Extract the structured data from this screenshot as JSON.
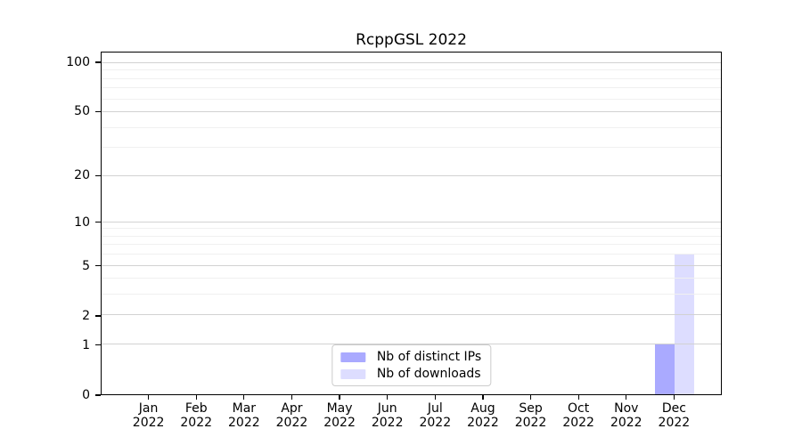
{
  "chart_data": {
    "type": "bar",
    "title": "RcppGSL 2022",
    "categories": [
      {
        "month": "Jan",
        "year": "2022"
      },
      {
        "month": "Feb",
        "year": "2022"
      },
      {
        "month": "Mar",
        "year": "2022"
      },
      {
        "month": "Apr",
        "year": "2022"
      },
      {
        "month": "May",
        "year": "2022"
      },
      {
        "month": "Jun",
        "year": "2022"
      },
      {
        "month": "Jul",
        "year": "2022"
      },
      {
        "month": "Aug",
        "year": "2022"
      },
      {
        "month": "Sep",
        "year": "2022"
      },
      {
        "month": "Oct",
        "year": "2022"
      },
      {
        "month": "Nov",
        "year": "2022"
      },
      {
        "month": "Dec",
        "year": "2022"
      }
    ],
    "series": [
      {
        "name": "Nb of distinct IPs",
        "color": "#aaaaff",
        "values": [
          0,
          0,
          0,
          0,
          0,
          0,
          0,
          0,
          0,
          0,
          0,
          1
        ]
      },
      {
        "name": "Nb of downloads",
        "color": "#ddddff",
        "values": [
          0,
          0,
          0,
          0,
          0,
          0,
          0,
          0,
          0,
          0,
          0,
          6
        ]
      }
    ],
    "xlabel": "",
    "ylabel": "",
    "yscale": "log1p",
    "yticks": [
      0,
      1,
      2,
      5,
      10,
      20,
      50,
      100
    ],
    "minor_yticks": [
      3,
      4,
      6,
      7,
      8,
      9,
      30,
      40,
      60,
      70,
      80,
      90
    ],
    "ylim": [
      0,
      116
    ],
    "grid": true,
    "legend_position": "lower center"
  }
}
